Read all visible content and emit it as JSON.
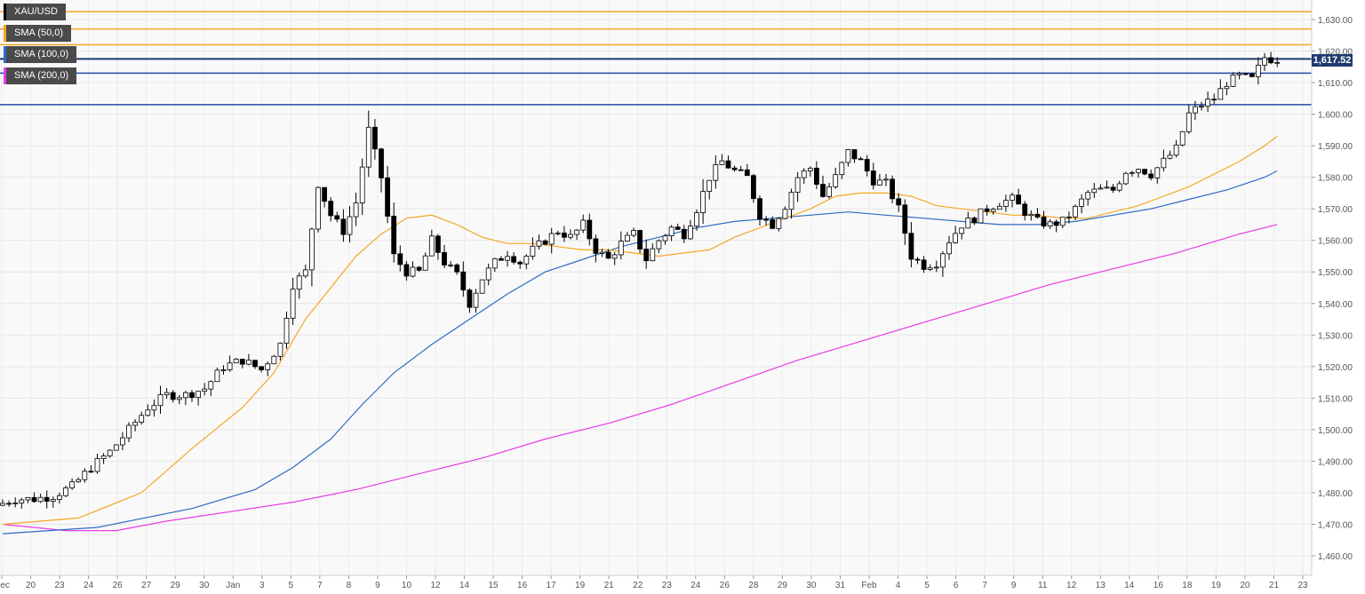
{
  "legend": {
    "symbol": "XAU/USD",
    "sma50": "SMA (50,0)",
    "sma100": "SMA (100,0)",
    "sma200": "SMA (200,0)"
  },
  "price_tag": "1,617.52",
  "colors": {
    "sma50": "#f5a623",
    "sma100": "#2d6bc4",
    "sma200": "#e83be8",
    "resistance": "#f5a623",
    "support": "#1f4aa8",
    "current": "#1f3a6e",
    "candle_up": "#ffffff",
    "candle_down": "#000000",
    "grid": "#e6e6e6"
  },
  "chart_data": {
    "type": "candlestick",
    "ylim": [
      1455,
      1635
    ],
    "y_ticks": [
      1460,
      1470,
      1480,
      1490,
      1500,
      1510,
      1520,
      1530,
      1540,
      1550,
      1560,
      1570,
      1580,
      1590,
      1600,
      1610,
      1620,
      1630
    ],
    "y_tick_labels": [
      "1,460.00",
      "1,470.00",
      "1,480.00",
      "1,490.00",
      "1,500.00",
      "1,510.00",
      "1,520.00",
      "1,530.00",
      "1,540.00",
      "1,550.00",
      "1,560.00",
      "1,570.00",
      "1,580.00",
      "1,590.00",
      "1,600.00",
      "1,610.00",
      "1,620.00",
      "1,630.00"
    ],
    "x_labels": [
      "Dec",
      "20",
      "23",
      "24",
      "26",
      "27",
      "29",
      "30",
      "Jan",
      "3",
      "5",
      "7",
      "8",
      "9",
      "10",
      "12",
      "14",
      "15",
      "16",
      "17",
      "19",
      "21",
      "22",
      "23",
      "24",
      "26",
      "28",
      "29",
      "30",
      "31",
      "Feb",
      "4",
      "5",
      "6",
      "7",
      "9",
      "11",
      "12",
      "13",
      "14",
      "16",
      "18",
      "19",
      "20",
      "21",
      "23"
    ],
    "grid": true,
    "horizontal_lines": [
      {
        "value": 1632.5,
        "role": "resistance"
      },
      {
        "value": 1627.0,
        "role": "resistance"
      },
      {
        "value": 1622.0,
        "role": "resistance"
      },
      {
        "value": 1617.52,
        "role": "current"
      },
      {
        "value": 1613.0,
        "role": "support"
      },
      {
        "value": 1603.0,
        "role": "support"
      }
    ],
    "anchors": [
      [
        0,
        1476
      ],
      [
        3,
        1478
      ],
      [
        6,
        1478
      ],
      [
        9,
        1479
      ],
      [
        12,
        1482
      ],
      [
        15,
        1488
      ],
      [
        18,
        1493
      ],
      [
        21,
        1500
      ],
      [
        24,
        1507
      ],
      [
        27,
        1511
      ],
      [
        30,
        1511
      ],
      [
        33,
        1513
      ],
      [
        36,
        1520
      ],
      [
        39,
        1522
      ],
      [
        42,
        1519
      ],
      [
        45,
        1527
      ],
      [
        47,
        1546
      ],
      [
        49,
        1550
      ],
      [
        51,
        1578
      ],
      [
        53,
        1568
      ],
      [
        55,
        1563
      ],
      [
        57,
        1572
      ],
      [
        59,
        1595
      ],
      [
        61,
        1580
      ],
      [
        63,
        1555
      ],
      [
        65,
        1550
      ],
      [
        67,
        1550
      ],
      [
        69,
        1560
      ],
      [
        71,
        1553
      ],
      [
        73,
        1549
      ],
      [
        75,
        1540
      ],
      [
        77,
        1548
      ],
      [
        79,
        1553
      ],
      [
        81,
        1556
      ],
      [
        83,
        1553
      ],
      [
        85,
        1557
      ],
      [
        87,
        1560
      ],
      [
        89,
        1563
      ],
      [
        91,
        1561
      ],
      [
        93,
        1565
      ],
      [
        95,
        1557
      ],
      [
        97,
        1554
      ],
      [
        99,
        1559
      ],
      [
        101,
        1562
      ],
      [
        103,
        1554
      ],
      [
        105,
        1560
      ],
      [
        107,
        1564
      ],
      [
        109,
        1562
      ],
      [
        111,
        1570
      ],
      [
        113,
        1580
      ],
      [
        115,
        1585
      ],
      [
        117,
        1582
      ],
      [
        119,
        1580
      ],
      [
        121,
        1568
      ],
      [
        123,
        1565
      ],
      [
        125,
        1571
      ],
      [
        127,
        1580
      ],
      [
        129,
        1583
      ],
      [
        131,
        1574
      ],
      [
        133,
        1580
      ],
      [
        135,
        1588
      ],
      [
        137,
        1585
      ],
      [
        139,
        1579
      ],
      [
        141,
        1578
      ],
      [
        143,
        1570
      ],
      [
        145,
        1555
      ],
      [
        147,
        1552
      ],
      [
        149,
        1553
      ],
      [
        151,
        1560
      ],
      [
        153,
        1565
      ],
      [
        155,
        1567
      ],
      [
        157,
        1570
      ],
      [
        159,
        1572
      ],
      [
        161,
        1573
      ],
      [
        163,
        1569
      ],
      [
        165,
        1566
      ],
      [
        167,
        1565
      ],
      [
        169,
        1566
      ],
      [
        171,
        1570
      ],
      [
        173,
        1575
      ],
      [
        175,
        1576
      ],
      [
        177,
        1576
      ],
      [
        179,
        1582
      ],
      [
        181,
        1583
      ],
      [
        183,
        1581
      ],
      [
        185,
        1585
      ],
      [
        187,
        1589
      ],
      [
        189,
        1600
      ],
      [
        191,
        1603
      ],
      [
        193,
        1605
      ],
      [
        195,
        1610
      ],
      [
        197,
        1612
      ],
      [
        199,
        1611
      ],
      [
        201,
        1618
      ],
      [
        202,
        1617.5
      ]
    ],
    "sma50": [
      [
        0,
        1470
      ],
      [
        12,
        1472
      ],
      [
        22,
        1480
      ],
      [
        30,
        1494
      ],
      [
        38,
        1507
      ],
      [
        43,
        1518
      ],
      [
        48,
        1535
      ],
      [
        52,
        1545
      ],
      [
        56,
        1555
      ],
      [
        60,
        1562
      ],
      [
        64,
        1567
      ],
      [
        68,
        1568
      ],
      [
        72,
        1565
      ],
      [
        76,
        1561
      ],
      [
        80,
        1559
      ],
      [
        84,
        1559
      ],
      [
        88,
        1558
      ],
      [
        92,
        1557
      ],
      [
        96,
        1557
      ],
      [
        100,
        1556
      ],
      [
        104,
        1555
      ],
      [
        108,
        1556
      ],
      [
        112,
        1557
      ],
      [
        116,
        1561
      ],
      [
        120,
        1564
      ],
      [
        124,
        1567
      ],
      [
        128,
        1570
      ],
      [
        132,
        1574
      ],
      [
        136,
        1575
      ],
      [
        140,
        1575
      ],
      [
        144,
        1574
      ],
      [
        148,
        1571
      ],
      [
        152,
        1570
      ],
      [
        156,
        1569
      ],
      [
        160,
        1568
      ],
      [
        164,
        1568
      ],
      [
        168,
        1567
      ],
      [
        172,
        1567
      ],
      [
        176,
        1569
      ],
      [
        180,
        1571
      ],
      [
        184,
        1574
      ],
      [
        188,
        1577
      ],
      [
        192,
        1581
      ],
      [
        196,
        1585
      ],
      [
        200,
        1590
      ],
      [
        202,
        1593
      ]
    ],
    "sma100": [
      [
        0,
        1467
      ],
      [
        15,
        1469
      ],
      [
        30,
        1475
      ],
      [
        40,
        1481
      ],
      [
        46,
        1488
      ],
      [
        52,
        1497
      ],
      [
        57,
        1508
      ],
      [
        62,
        1518
      ],
      [
        68,
        1527
      ],
      [
        74,
        1535
      ],
      [
        80,
        1543
      ],
      [
        86,
        1550
      ],
      [
        92,
        1554
      ],
      [
        98,
        1558
      ],
      [
        104,
        1561
      ],
      [
        110,
        1564
      ],
      [
        116,
        1566
      ],
      [
        122,
        1567
      ],
      [
        128,
        1568
      ],
      [
        134,
        1569
      ],
      [
        140,
        1568
      ],
      [
        146,
        1567
      ],
      [
        152,
        1566
      ],
      [
        158,
        1565
      ],
      [
        164,
        1565
      ],
      [
        170,
        1566
      ],
      [
        176,
        1568
      ],
      [
        182,
        1570
      ],
      [
        188,
        1573
      ],
      [
        194,
        1576
      ],
      [
        200,
        1580
      ],
      [
        202,
        1582
      ]
    ],
    "sma200": [
      [
        0,
        1470
      ],
      [
        10,
        1468
      ],
      [
        18,
        1468
      ],
      [
        26,
        1471
      ],
      [
        36,
        1474
      ],
      [
        46,
        1477
      ],
      [
        56,
        1481
      ],
      [
        66,
        1486
      ],
      [
        76,
        1491
      ],
      [
        86,
        1497
      ],
      [
        96,
        1502
      ],
      [
        106,
        1508
      ],
      [
        116,
        1515
      ],
      [
        126,
        1522
      ],
      [
        136,
        1528
      ],
      [
        146,
        1534
      ],
      [
        156,
        1540
      ],
      [
        166,
        1546
      ],
      [
        176,
        1551
      ],
      [
        186,
        1556
      ],
      [
        196,
        1562
      ],
      [
        202,
        1565
      ]
    ]
  }
}
